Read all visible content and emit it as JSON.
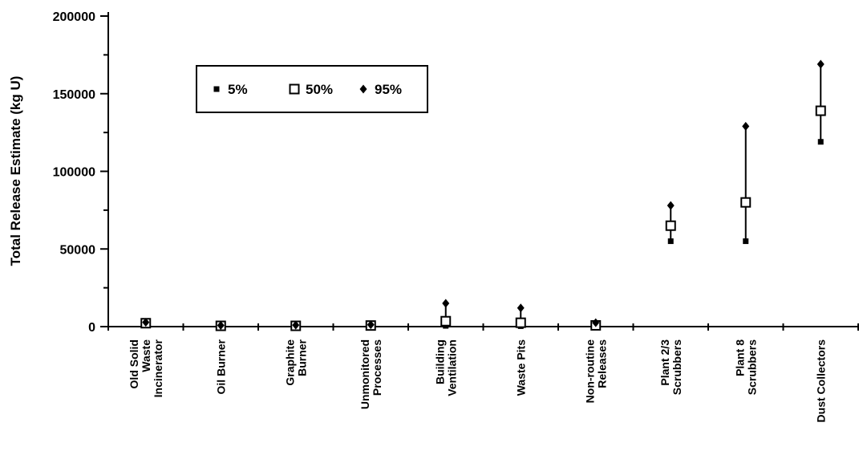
{
  "chart_data": {
    "type": "range",
    "ylabel": "Total Release Estimate (kg U)",
    "xlabel": "",
    "ylim": [
      0,
      200000
    ],
    "yticks": [
      0,
      50000,
      100000,
      150000,
      200000
    ],
    "grid": false,
    "legend_position": "top-left",
    "categories": [
      [
        "Old Solid",
        "Waste",
        "Incinerator"
      ],
      [
        "Oil Burner"
      ],
      [
        "Graphite",
        "Burner"
      ],
      [
        "Unmonitored",
        "Processes"
      ],
      [
        "Building",
        "Ventilation"
      ],
      [
        "Waste Pits"
      ],
      [
        "Non-routine",
        "Releases"
      ],
      [
        "Plant 2/3",
        "Scrubbers"
      ],
      [
        "Plant 8",
        "Scrubbers"
      ],
      [
        "Dust Collectors"
      ]
    ],
    "series": [
      {
        "name": "5%",
        "marker": "filled-square",
        "values": [
          2000,
          300,
          300,
          300,
          500,
          300,
          200,
          55000,
          55000,
          119000
        ]
      },
      {
        "name": "50%",
        "marker": "open-square",
        "values": [
          2200,
          500,
          500,
          700,
          3500,
          2500,
          800,
          65000,
          80000,
          139000
        ]
      },
      {
        "name": "95%",
        "marker": "filled-diamond",
        "values": [
          2800,
          800,
          1000,
          1200,
          15000,
          12000,
          2500,
          78000,
          129000,
          169000
        ]
      }
    ],
    "colors": {
      "marker": "#000000",
      "background": "#ffffff"
    }
  }
}
